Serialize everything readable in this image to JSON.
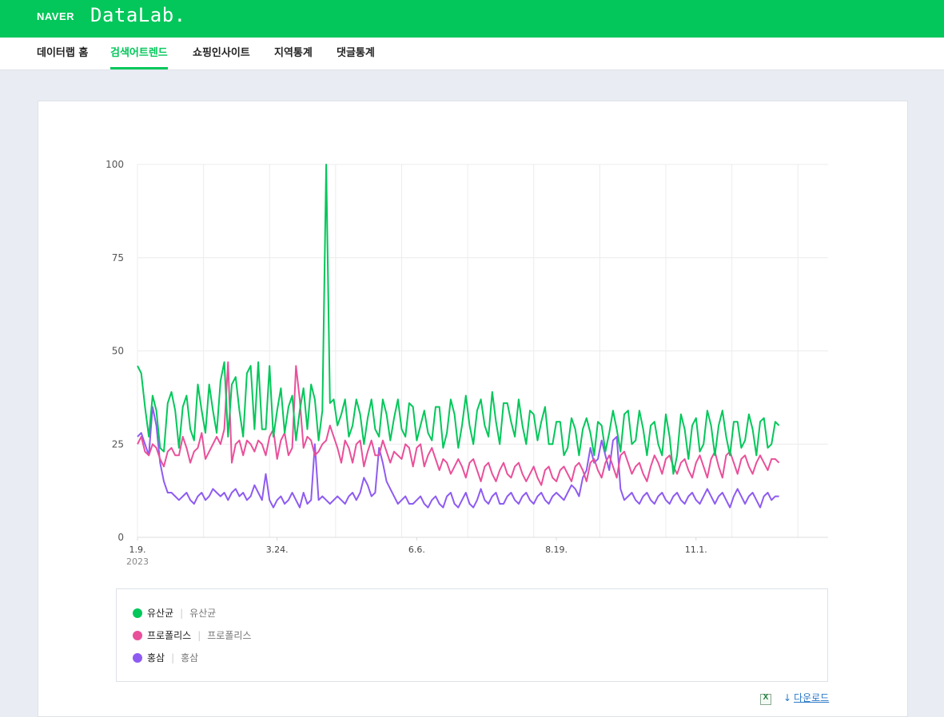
{
  "header": {
    "brand": "NAVER",
    "product": "DataLab."
  },
  "nav": {
    "items": [
      {
        "label": "데이터랩 홈",
        "active": false
      },
      {
        "label": "검색어트렌드",
        "active": true
      },
      {
        "label": "쇼핑인사이트",
        "active": false
      },
      {
        "label": "지역통계",
        "active": false
      },
      {
        "label": "댓글통계",
        "active": false
      }
    ]
  },
  "chart_data": {
    "type": "line",
    "y_ticks": [
      "0",
      "25",
      "50",
      "75",
      "100"
    ],
    "ylim": [
      0,
      100
    ],
    "grid": true,
    "x_labels": [
      "1.9.",
      "3.24.",
      "6.6.",
      "8.19.",
      "11.1."
    ],
    "x_label_days": [
      0,
      74,
      148,
      222,
      296
    ],
    "x_sublabel": "2023",
    "x_range_days": [
      0,
      366
    ],
    "series": [
      {
        "name": "유산균",
        "color": "#03c75a",
        "start_day": 0,
        "step_days": 2,
        "values": [
          46,
          44,
          35,
          27,
          38,
          34,
          24,
          23,
          36,
          39,
          34,
          24,
          35,
          38,
          29,
          26,
          41,
          34,
          28,
          41,
          34,
          28,
          42,
          47,
          27,
          41,
          43,
          34,
          27,
          44,
          46,
          29,
          47,
          29,
          29,
          46,
          27,
          34,
          40,
          28,
          35,
          38,
          26,
          34,
          40,
          29,
          41,
          37,
          26,
          34,
          100,
          36,
          37,
          30,
          33,
          37,
          27,
          30,
          37,
          33,
          25,
          32,
          37,
          29,
          27,
          37,
          33,
          26,
          32,
          37,
          29,
          27,
          36,
          35,
          26,
          30,
          34,
          28,
          26,
          35,
          35,
          24,
          28,
          37,
          33,
          24,
          30,
          38,
          30,
          25,
          34,
          37,
          30,
          27,
          39,
          31,
          25,
          36,
          36,
          31,
          27,
          37,
          30,
          25,
          34,
          33,
          26,
          31,
          35,
          25,
          25,
          31,
          31,
          22,
          24,
          32,
          29,
          22,
          29,
          32,
          28,
          22,
          31,
          30,
          23,
          28,
          34,
          29,
          23,
          33,
          34,
          25,
          26,
          34,
          29,
          22,
          30,
          31,
          25,
          22,
          33,
          27,
          17,
          22,
          33,
          29,
          21,
          30,
          32,
          23,
          25,
          34,
          30,
          22,
          30,
          34,
          27,
          22,
          31,
          31,
          24,
          26,
          33,
          29,
          22,
          31,
          32,
          24,
          25,
          31,
          30
        ]
      },
      {
        "name": "프로폴리스",
        "color": "#e9509a",
        "start_day": 0,
        "step_days": 2,
        "values": [
          25,
          27,
          23,
          22,
          25,
          24,
          21,
          19,
          23,
          24,
          22,
          22,
          27,
          24,
          20,
          23,
          24,
          28,
          21,
          23,
          25,
          27,
          25,
          29,
          47,
          20,
          25,
          26,
          22,
          26,
          25,
          23,
          26,
          25,
          22,
          27,
          29,
          21,
          26,
          28,
          22,
          24,
          46,
          37,
          24,
          27,
          26,
          22,
          23,
          25,
          26,
          30,
          27,
          24,
          20,
          26,
          24,
          20,
          25,
          26,
          19,
          23,
          26,
          22,
          22,
          26,
          23,
          20,
          23,
          22,
          21,
          25,
          24,
          19,
          24,
          25,
          19,
          22,
          24,
          21,
          18,
          21,
          20,
          17,
          19,
          21,
          19,
          16,
          20,
          21,
          18,
          15,
          19,
          20,
          17,
          15,
          18,
          20,
          17,
          16,
          19,
          20,
          17,
          15,
          17,
          19,
          16,
          14,
          18,
          19,
          16,
          15,
          18,
          19,
          17,
          15,
          19,
          20,
          18,
          15,
          20,
          21,
          18,
          16,
          20,
          22,
          19,
          16,
          22,
          23,
          20,
          17,
          19,
          20,
          17,
          15,
          19,
          22,
          20,
          17,
          21,
          22,
          19,
          17,
          20,
          21,
          18,
          16,
          20,
          22,
          19,
          16,
          21,
          23,
          19,
          16,
          22,
          23,
          20,
          17,
          21,
          22,
          19,
          17,
          20,
          22,
          20,
          18,
          21,
          21,
          20
        ]
      },
      {
        "name": "홍삼",
        "color": "#8e5bf2",
        "start_day": 0,
        "step_days": 2,
        "values": [
          27,
          28,
          25,
          22,
          35,
          30,
          20,
          15,
          12,
          12,
          11,
          10,
          11,
          12,
          10,
          9,
          11,
          12,
          10,
          11,
          13,
          12,
          11,
          12,
          10,
          12,
          13,
          11,
          12,
          10,
          11,
          14,
          12,
          10,
          17,
          10,
          8,
          10,
          11,
          9,
          10,
          12,
          10,
          8,
          12,
          9,
          10,
          25,
          10,
          11,
          10,
          9,
          10,
          11,
          10,
          9,
          11,
          12,
          10,
          12,
          16,
          14,
          11,
          12,
          24,
          20,
          15,
          13,
          11,
          9,
          10,
          11,
          9,
          9,
          10,
          11,
          9,
          8,
          10,
          11,
          9,
          8,
          11,
          12,
          9,
          8,
          10,
          12,
          9,
          8,
          10,
          13,
          10,
          9,
          11,
          12,
          9,
          9,
          11,
          12,
          10,
          9,
          11,
          12,
          10,
          9,
          11,
          12,
          10,
          9,
          11,
          12,
          11,
          10,
          12,
          14,
          13,
          11,
          16,
          18,
          24,
          20,
          21,
          26,
          22,
          18,
          26,
          27,
          13,
          10,
          11,
          12,
          10,
          9,
          11,
          12,
          10,
          9,
          11,
          12,
          10,
          9,
          11,
          12,
          10,
          9,
          11,
          12,
          10,
          9,
          11,
          13,
          11,
          9,
          11,
          12,
          10,
          8,
          11,
          13,
          11,
          9,
          11,
          12,
          10,
          8,
          11,
          12,
          10,
          11,
          11
        ]
      }
    ]
  },
  "legend": {
    "items": [
      {
        "name": "유산균",
        "sub": "유산균",
        "color": "#03c75a"
      },
      {
        "name": "프로폴리스",
        "sub": "프로폴리스",
        "color": "#e9509a"
      },
      {
        "name": "홍삼",
        "sub": "홍삼",
        "color": "#8e5bf2"
      }
    ]
  },
  "footer": {
    "download_label": "다운로드"
  }
}
